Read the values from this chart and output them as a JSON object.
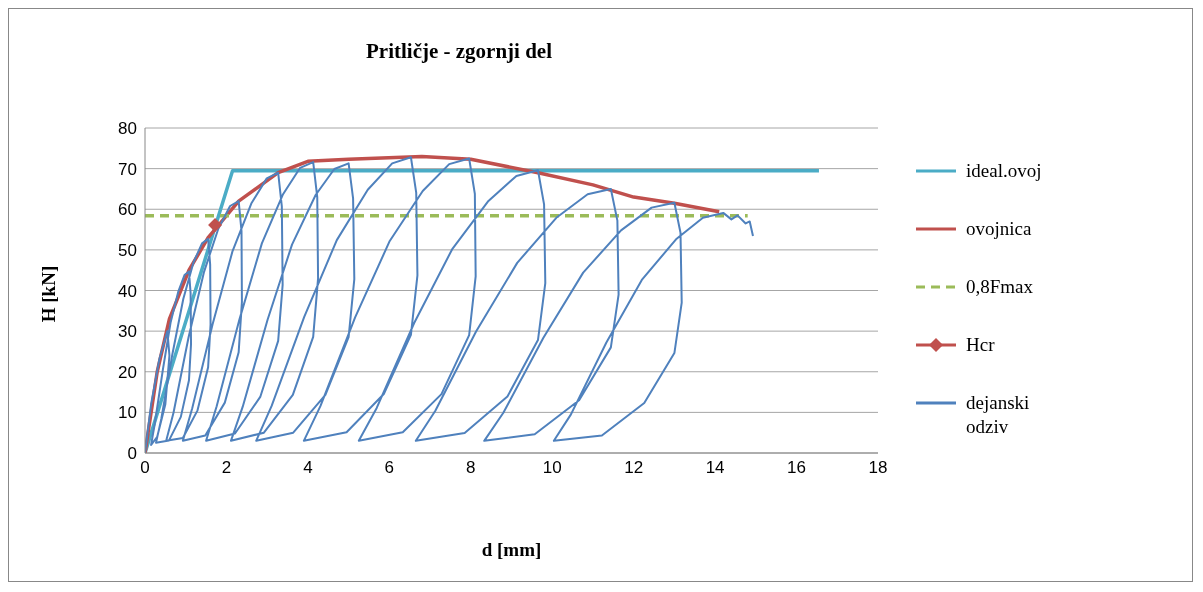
{
  "chart_data": {
    "type": "line",
    "title": "Pritličje - zgornji del",
    "xlabel": "d [mm]",
    "ylabel": "H [kN]",
    "xlim": [
      0,
      18
    ],
    "xticks": [
      0,
      2,
      4,
      6,
      8,
      10,
      12,
      14,
      16,
      18
    ],
    "ylim": [
      0,
      80
    ],
    "yticks": [
      0,
      10,
      20,
      30,
      40,
      50,
      60,
      70,
      80
    ],
    "grid": "y",
    "legend": "right",
    "series": [
      {
        "name": "ideal.ovoj",
        "color": "#4bacc6",
        "marker": "none",
        "line_style": "solid",
        "x": [
          0,
          2.15,
          16.55
        ],
        "values": [
          0,
          69.5,
          69.5
        ]
      },
      {
        "name": "ovojnica",
        "color": "#c0504d",
        "marker": "none",
        "line_style": "solid",
        "x": [
          0,
          0.3,
          0.6,
          1.08,
          1.55,
          1.8,
          2.3,
          3.27,
          4.0,
          5.0,
          6.8,
          8.0,
          9.65,
          11.0,
          12.0,
          13.0,
          14.1
        ],
        "values": [
          0,
          20,
          33,
          45,
          53,
          56,
          62,
          69,
          71.8,
          72.3,
          73,
          72.3,
          69,
          66,
          63,
          61.5,
          59.4
        ]
      },
      {
        "name": "0,8Fmax",
        "color": "#9bbb59",
        "marker": "none",
        "line_style": "dashed",
        "x": [
          0,
          14.8
        ],
        "values": [
          58.4,
          58.4
        ]
      },
      {
        "name": "Hcr",
        "color": "#c0504d",
        "marker": "diamond",
        "line_style": "solid",
        "x": [
          1.72
        ],
        "values": [
          56.1
        ]
      },
      {
        "name": "dejanski odziv",
        "color": "#4f81bd",
        "marker": "none",
        "line_style": "solid",
        "x": [
          0,
          0.15,
          0.35,
          0.55,
          0.6,
          0.5,
          0.3,
          0.15,
          0.24,
          0.44,
          0.63,
          0.82,
          0.97,
          1.08,
          1.12,
          1.13,
          1.08,
          0.88,
          0.59,
          0.27,
          0.4,
          0.67,
          0.94,
          1.19,
          1.4,
          1.55,
          1.6,
          1.61,
          1.55,
          1.29,
          0.93,
          0.52,
          0.7,
          1.07,
          1.45,
          1.8,
          2.09,
          2.3,
          2.37,
          2.38,
          2.3,
          1.96,
          1.48,
          0.93,
          1.16,
          1.66,
          2.15,
          2.61,
          2.99,
          3.27,
          3.36,
          3.38,
          3.27,
          2.83,
          2.21,
          1.5,
          1.76,
          2.32,
          2.87,
          3.39,
          3.81,
          4.13,
          4.23,
          4.25,
          4.13,
          3.63,
          2.92,
          2.11,
          2.4,
          3.01,
          3.61,
          4.19,
          4.65,
          5.0,
          5.11,
          5.14,
          5.0,
          4.43,
          3.64,
          2.73,
          3.11,
          3.91,
          4.71,
          5.47,
          6.07,
          6.53,
          6.66,
          6.69,
          6.53,
          5.87,
          4.95,
          3.9,
          4.31,
          5.16,
          6.01,
          6.82,
          7.47,
          7.96,
          8.1,
          8.12,
          7.96,
          7.28,
          6.33,
          5.25,
          5.69,
          6.61,
          7.54,
          8.42,
          9.12,
          9.65,
          9.8,
          9.83,
          9.65,
          8.9,
          7.85,
          6.65,
          7.13,
          8.13,
          9.14,
          10.1,
          10.87,
          11.44,
          11.6,
          11.63,
          11.44,
          10.66,
          9.57,
          8.33,
          8.8,
          9.78,
          10.76,
          11.69,
          12.44,
          13.0,
          13.15,
          13.18,
          13.0,
          12.26,
          11.22,
          10.04,
          10.46,
          11.33,
          12.2,
          13.04,
          13.7,
          14.2,
          14.4,
          14.55,
          14.75,
          14.85,
          14.93
        ],
        "values": [
          0,
          12,
          23,
          30,
          24,
          12,
          4,
          2,
          7.2,
          20.6,
          32.2,
          39.8,
          43.8,
          44.7,
          39.3,
          26.8,
          17.9,
          8.9,
          3.1,
          2.5,
          8.4,
          24.2,
          37.9,
          46.9,
          51.6,
          52.7,
          46.4,
          31.6,
          21.1,
          10.5,
          3.7,
          3,
          9.9,
          28.5,
          44.6,
          55.2,
          60.8,
          62,
          54.6,
          37.2,
          24.8,
          12.4,
          4.3,
          3,
          11,
          31.7,
          49.7,
          61.4,
          67.6,
          69,
          60.7,
          41.4,
          27.6,
          13.8,
          4.8,
          3,
          11.5,
          32.9,
          51.6,
          63.7,
          70.2,
          71.6,
          63,
          43,
          28.6,
          14.3,
          5,
          3,
          11.4,
          32.8,
          51.3,
          63.5,
          69.9,
          71.3,
          62.7,
          42.8,
          28.5,
          14.3,
          5,
          3,
          11.6,
          33.5,
          52.4,
          64.8,
          71.3,
          72.8,
          64.1,
          43.7,
          29.1,
          14.6,
          5.1,
          3,
          11.6,
          33.4,
          52.2,
          64.5,
          71.1,
          72.5,
          63.8,
          43.5,
          29,
          14.5,
          5.1,
          3,
          11.1,
          32,
          50.1,
          61.9,
          68.2,
          69.6,
          61.2,
          41.8,
          27.8,
          13.9,
          4.9,
          3,
          10.4,
          29.9,
          46.8,
          57.9,
          63.7,
          65,
          57.2,
          39,
          26,
          13,
          4.6,
          3,
          9.9,
          28.3,
          44.4,
          54.8,
          60.4,
          61.6,
          54.2,
          37,
          24.6,
          12.3,
          4.3,
          3,
          9.5,
          27.2,
          42.6,
          52.6,
          57.9,
          59.1,
          57.5,
          58.5,
          56.5,
          57,
          53.4
        ]
      }
    ]
  }
}
